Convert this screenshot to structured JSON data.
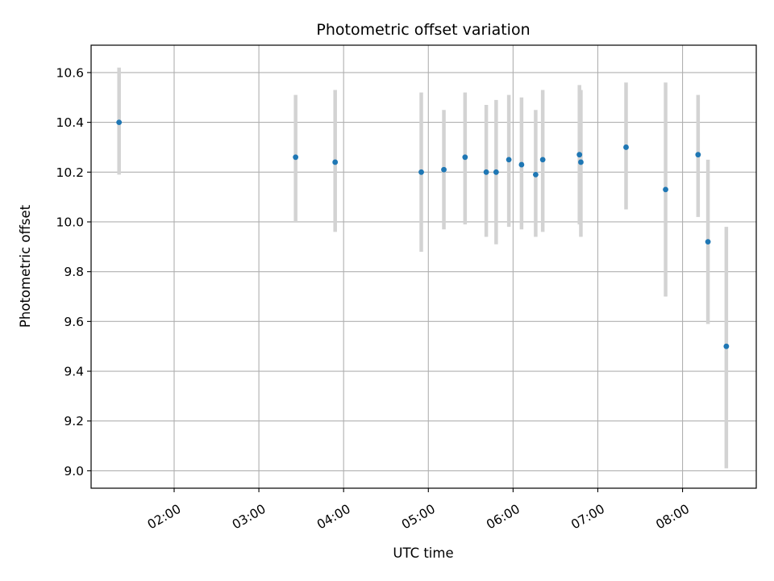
{
  "chart_data": {
    "type": "scatter",
    "title": "Photometric offset variation",
    "xlabel": "UTC time",
    "ylabel": "Photometric offset",
    "x_tick_labels": [
      "02:00",
      "03:00",
      "04:00",
      "05:00",
      "06:00",
      "07:00",
      "08:00"
    ],
    "x_ticks_hours": [
      2,
      3,
      4,
      5,
      6,
      7,
      8
    ],
    "y_tick_labels": [
      "9.0",
      "9.2",
      "9.4",
      "9.6",
      "9.8",
      "10.0",
      "10.2",
      "10.4",
      "10.6"
    ],
    "y_ticks": [
      9.0,
      9.2,
      9.4,
      9.6,
      9.8,
      10.0,
      10.2,
      10.4,
      10.6
    ],
    "xlim_hours": [
      1.02,
      8.87
    ],
    "ylim": [
      8.93,
      10.71
    ],
    "grid": true,
    "colors": {
      "point": "#1f77b4",
      "errorbar": "#d3d3d3",
      "grid": "#b0b0b0"
    },
    "points": [
      {
        "time": "01:21",
        "y": 10.4,
        "ylow": 10.19,
        "yhigh": 10.62
      },
      {
        "time": "03:26",
        "y": 10.26,
        "ylow": 10.0,
        "yhigh": 10.51
      },
      {
        "time": "03:54",
        "y": 10.24,
        "ylow": 9.96,
        "yhigh": 10.53
      },
      {
        "time": "04:55",
        "y": 10.2,
        "ylow": 9.88,
        "yhigh": 10.52
      },
      {
        "time": "05:11",
        "y": 10.21,
        "ylow": 9.97,
        "yhigh": 10.45
      },
      {
        "time": "05:26",
        "y": 10.26,
        "ylow": 9.99,
        "yhigh": 10.52
      },
      {
        "time": "05:41",
        "y": 10.2,
        "ylow": 9.94,
        "yhigh": 10.47
      },
      {
        "time": "05:48",
        "y": 10.2,
        "ylow": 9.91,
        "yhigh": 10.49
      },
      {
        "time": "05:57",
        "y": 10.25,
        "ylow": 9.98,
        "yhigh": 10.51
      },
      {
        "time": "06:06",
        "y": 10.23,
        "ylow": 9.97,
        "yhigh": 10.5
      },
      {
        "time": "06:16",
        "y": 10.19,
        "ylow": 9.94,
        "yhigh": 10.45
      },
      {
        "time": "06:21",
        "y": 10.25,
        "ylow": 9.96,
        "yhigh": 10.53
      },
      {
        "time": "06:47",
        "y": 10.27,
        "ylow": 9.99,
        "yhigh": 10.55
      },
      {
        "time": "06:48",
        "y": 10.24,
        "ylow": 9.94,
        "yhigh": 10.53
      },
      {
        "time": "07:20",
        "y": 10.3,
        "ylow": 10.05,
        "yhigh": 10.56
      },
      {
        "time": "07:48",
        "y": 10.13,
        "ylow": 9.7,
        "yhigh": 10.56
      },
      {
        "time": "08:11",
        "y": 10.27,
        "ylow": 10.02,
        "yhigh": 10.51
      },
      {
        "time": "08:18",
        "y": 9.92,
        "ylow": 9.59,
        "yhigh": 10.25
      },
      {
        "time": "08:31",
        "y": 9.5,
        "ylow": 9.01,
        "yhigh": 9.98
      }
    ]
  }
}
